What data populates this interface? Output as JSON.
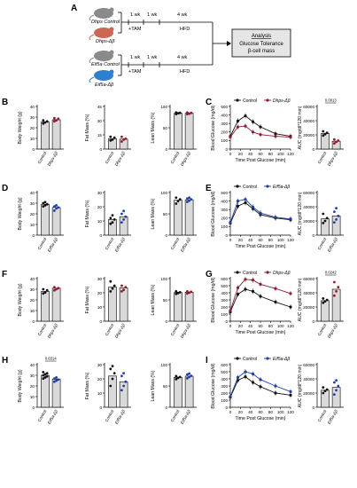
{
  "colors": {
    "control": "#111111",
    "dhps": "#8b1e2d",
    "eif5a": "#1f3f9e",
    "bar_fill": "#d9d9d9",
    "dhps_mouse": "#cc6655",
    "eif5a_mouse": "#2f7fcf",
    "control_mouse": "#8a8a8a",
    "box_fill": "#e6e6e6"
  },
  "schematic": {
    "panel": "A",
    "rows": [
      {
        "mice": [
          "Dhps Control",
          "Dhps-Δβ"
        ],
        "wk1": "1 wk",
        "wk2": "1 wk",
        "wk3": "4 wk",
        "tam": "+TAM",
        "hfd": "HFD"
      },
      {
        "mice": [
          "Eif5a Control",
          "Eif5a-Δβ"
        ],
        "wk1": "1 wk",
        "wk2": "1 wk",
        "wk3": "4 wk",
        "tam": "+TAM",
        "hfd": "HFD"
      }
    ],
    "analysis": [
      "Analysis",
      "Glucose Tolerance",
      "β-cell mass"
    ]
  },
  "chart_data": [
    {
      "panel": "B",
      "type": "bar",
      "ylabel": "Body Weight (g)",
      "yticks": [
        0,
        10,
        20,
        30,
        40
      ],
      "ylim": [
        0,
        40
      ],
      "categories": [
        "Control",
        "Dhps-Δβ"
      ],
      "values": [
        25.5,
        27.5
      ],
      "points": [
        [
          24,
          25,
          26,
          27
        ],
        [
          26,
          27,
          28.5,
          29
        ]
      ]
    },
    {
      "panel": "B",
      "type": "bar",
      "ylabel": "Fat Mass (%)",
      "yticks": [
        0,
        15,
        30,
        45
      ],
      "ylim": [
        0,
        45
      ],
      "categories": [
        "Control",
        "Dhps-Δβ"
      ],
      "values": [
        11,
        10.5
      ],
      "points": [
        [
          9,
          10,
          12,
          13
        ],
        [
          8,
          10,
          11,
          13
        ]
      ]
    },
    {
      "panel": "B",
      "type": "bar",
      "ylabel": "Lean Mass (%)",
      "yticks": [
        0,
        50,
        100
      ],
      "ylim": [
        0,
        100
      ],
      "categories": [
        "Control",
        "Dhps-Δβ"
      ],
      "values": [
        84,
        84
      ],
      "points": [
        [
          82,
          84,
          85,
          86
        ],
        [
          82,
          83,
          85,
          86
        ]
      ]
    },
    {
      "panel": "C",
      "type": "line",
      "ylabel": "Blood Glucose (mg/dl)",
      "xlabel": "Time Post Glucose (min)",
      "x": [
        0,
        15,
        30,
        45,
        60,
        90,
        120
      ],
      "xticks": [
        0,
        20,
        40,
        60,
        80,
        100,
        120
      ],
      "yticks": [
        0,
        100,
        200,
        300,
        400,
        500
      ],
      "ylim": [
        0,
        500
      ],
      "series": [
        {
          "name": "Control",
          "values": [
            150,
            330,
            390,
            320,
            260,
            180,
            150
          ]
        },
        {
          "name": "Dhps-Δβ",
          "values": [
            140,
            260,
            270,
            200,
            170,
            150,
            140
          ]
        }
      ]
    },
    {
      "panel": "C",
      "type": "bar",
      "ylabel": "AUC (mg/dl*120 min)",
      "yticks": [
        0,
        20000,
        40000,
        60000
      ],
      "ylim": [
        0,
        60000
      ],
      "categories": [
        "Control",
        "Dhps-Δβ"
      ],
      "values": [
        22000,
        11000
      ],
      "points": [
        [
          19000,
          21000,
          23000,
          25000
        ],
        [
          8000,
          10000,
          12000,
          13500
        ]
      ],
      "annotation": "0.0013"
    },
    {
      "panel": "D",
      "type": "bar",
      "ylabel": "Body Weight (g)",
      "yticks": [
        0,
        10,
        20,
        30,
        40
      ],
      "ylim": [
        0,
        40
      ],
      "categories": [
        "Control",
        "Eif5a-Δβ"
      ],
      "values": [
        29,
        26
      ],
      "points": [
        [
          27,
          28,
          29,
          30,
          31
        ],
        [
          23,
          25,
          26,
          27,
          28
        ]
      ]
    },
    {
      "panel": "D",
      "type": "bar",
      "ylabel": "Fat Mass (%)",
      "yticks": [
        0,
        10,
        20,
        30
      ],
      "ylim": [
        0,
        30
      ],
      "categories": [
        "Control",
        "Eif5a-Δβ"
      ],
      "values": [
        11,
        13
      ],
      "points": [
        [
          8,
          9,
          11,
          12,
          14
        ],
        [
          9,
          11,
          13,
          15,
          17
        ]
      ]
    },
    {
      "panel": "D",
      "type": "bar",
      "ylabel": "Lean Mass (%)",
      "yticks": [
        0,
        50,
        100
      ],
      "ylim": [
        0,
        100
      ],
      "categories": [
        "Control",
        "Eif5a-Δβ"
      ],
      "values": [
        82,
        83
      ],
      "points": [
        [
          74,
          80,
          84,
          88
        ],
        [
          78,
          81,
          84,
          86,
          88
        ]
      ]
    },
    {
      "panel": "E",
      "type": "line",
      "ylabel": "Blood Glucose (mg/dl)",
      "xlabel": "Time Post Glucose (min)",
      "x": [
        0,
        15,
        30,
        45,
        60,
        90,
        120
      ],
      "xticks": [
        0,
        20,
        40,
        60,
        80,
        100,
        120
      ],
      "yticks": [
        0,
        100,
        200,
        300,
        400,
        500
      ],
      "ylim": [
        0,
        500
      ],
      "series": [
        {
          "name": "Control",
          "values": [
            140,
            340,
            380,
            310,
            240,
            200,
            180
          ]
        },
        {
          "name": "Eif5a-Δβ",
          "values": [
            150,
            400,
            420,
            330,
            260,
            210,
            190
          ]
        }
      ]
    },
    {
      "panel": "E",
      "type": "bar",
      "ylabel": "AUC (mg/dl*120 min)",
      "yticks": [
        0,
        20000,
        40000,
        60000
      ],
      "ylim": [
        0,
        60000
      ],
      "categories": [
        "Control",
        "Eif5a-Δβ"
      ],
      "values": [
        23000,
        27000
      ],
      "points": [
        [
          17000,
          20000,
          24000,
          30000
        ],
        [
          18000,
          22000,
          27000,
          33000,
          38000
        ]
      ]
    },
    {
      "panel": "F",
      "type": "bar",
      "ylabel": "Body Weight (g)",
      "yticks": [
        0,
        10,
        20,
        30,
        40
      ],
      "ylim": [
        0,
        40
      ],
      "categories": [
        "Control",
        "Dhps-Δβ"
      ],
      "values": [
        28,
        31
      ],
      "points": [
        [
          26,
          27,
          29,
          30
        ],
        [
          29,
          30,
          31,
          32
        ]
      ]
    },
    {
      "panel": "F",
      "type": "bar",
      "ylabel": "Fat Mass (%)",
      "yticks": [
        0,
        10,
        20,
        30
      ],
      "ylim": [
        0,
        30
      ],
      "categories": [
        "Control",
        "Dhps-Δβ"
      ],
      "values": [
        24,
        23.5
      ],
      "points": [
        [
          21,
          23,
          25,
          28
        ],
        [
          21,
          22,
          24,
          25
        ]
      ]
    },
    {
      "panel": "F",
      "type": "bar",
      "ylabel": "Lean Mass (%)",
      "yticks": [
        0,
        50,
        100
      ],
      "ylim": [
        0,
        100
      ],
      "categories": [
        "Control",
        "Dhps-Δβ"
      ],
      "values": [
        67,
        68
      ],
      "points": [
        [
          64,
          66,
          68,
          70
        ],
        [
          65,
          67,
          69,
          70
        ]
      ]
    },
    {
      "panel": "G",
      "type": "line",
      "ylabel": "Blood Glucose (mg/dl)",
      "xlabel": "Time Post Glucose (min)",
      "x": [
        0,
        15,
        30,
        45,
        60,
        90,
        120
      ],
      "xticks": [
        0,
        20,
        40,
        60,
        80,
        100,
        120
      ],
      "yticks": [
        0,
        100,
        200,
        300,
        400,
        500,
        600
      ],
      "ylim": [
        0,
        600
      ],
      "series": [
        {
          "name": "Control",
          "values": [
            130,
            380,
            450,
            420,
            350,
            270,
            200
          ]
        },
        {
          "name": "Dhps-Δβ",
          "values": [
            150,
            470,
            590,
            580,
            520,
            460,
            390
          ]
        }
      ]
    },
    {
      "panel": "G",
      "type": "bar",
      "ylabel": "AUC (mg/dl*120 min)",
      "yticks": [
        0,
        20000,
        40000,
        60000
      ],
      "ylim": [
        0,
        60000
      ],
      "categories": [
        "Control",
        "Dhps-Δβ"
      ],
      "values": [
        29000,
        45000
      ],
      "points": [
        [
          26000,
          28000,
          30000,
          32000
        ],
        [
          36000,
          42000,
          48000,
          55000
        ]
      ],
      "annotation": "0.0242"
    },
    {
      "panel": "H",
      "type": "bar",
      "ylabel": "Body Weight (g)",
      "yticks": [
        0,
        10,
        20,
        30,
        40
      ],
      "ylim": [
        0,
        40
      ],
      "categories": [
        "Control",
        "Eif5a-Δβ"
      ],
      "values": [
        30,
        26.5
      ],
      "points": [
        [
          27,
          28,
          29,
          30,
          31,
          32,
          33
        ],
        [
          24,
          25,
          26,
          27,
          28
        ]
      ],
      "annotation": "0.0314"
    },
    {
      "panel": "H",
      "type": "bar",
      "ylabel": "Fat Mass (%)",
      "yticks": [
        0,
        10,
        20,
        30
      ],
      "ylim": [
        0,
        30
      ],
      "categories": [
        "Control",
        "Eif5a-Δβ"
      ],
      "values": [
        22,
        18
      ],
      "points": [
        [
          15,
          20,
          24,
          27,
          29
        ],
        [
          12,
          15,
          18,
          22,
          24
        ]
      ]
    },
    {
      "panel": "H",
      "type": "bar",
      "ylabel": "Lean Mass (%)",
      "yticks": [
        0,
        50,
        100
      ],
      "ylim": [
        0,
        100
      ],
      "categories": [
        "Control",
        "Eif5a-Δβ"
      ],
      "values": [
        70,
        73
      ],
      "points": [
        [
          66,
          69,
          71,
          73
        ],
        [
          68,
          71,
          74,
          77,
          79
        ]
      ]
    },
    {
      "panel": "I",
      "type": "line",
      "ylabel": "Blood Glucose (mg/dl)",
      "xlabel": "Time Post Glucose (min)",
      "x": [
        0,
        15,
        30,
        45,
        60,
        90,
        120
      ],
      "xticks": [
        0,
        20,
        40,
        60,
        80,
        100,
        120
      ],
      "yticks": [
        0,
        100,
        200,
        300,
        400,
        500,
        600
      ],
      "ylim": [
        0,
        600
      ],
      "series": [
        {
          "name": "Control",
          "values": [
            140,
            380,
            430,
            350,
            290,
            200,
            170
          ]
        },
        {
          "name": "Eif5a-Δβ",
          "values": [
            150,
            420,
            500,
            470,
            390,
            300,
            220
          ]
        }
      ]
    },
    {
      "panel": "I",
      "type": "bar",
      "ylabel": "AUC (mg/dl*120 min)",
      "yticks": [
        0,
        20000,
        40000,
        60000
      ],
      "ylim": [
        0,
        60000
      ],
      "categories": [
        "Control",
        "Eif5a-Δβ"
      ],
      "values": [
        24000,
        28000
      ],
      "points": [
        [
          20000,
          23000,
          25000,
          28000
        ],
        [
          18000,
          24000,
          30000,
          35000,
          38000
        ]
      ]
    }
  ]
}
